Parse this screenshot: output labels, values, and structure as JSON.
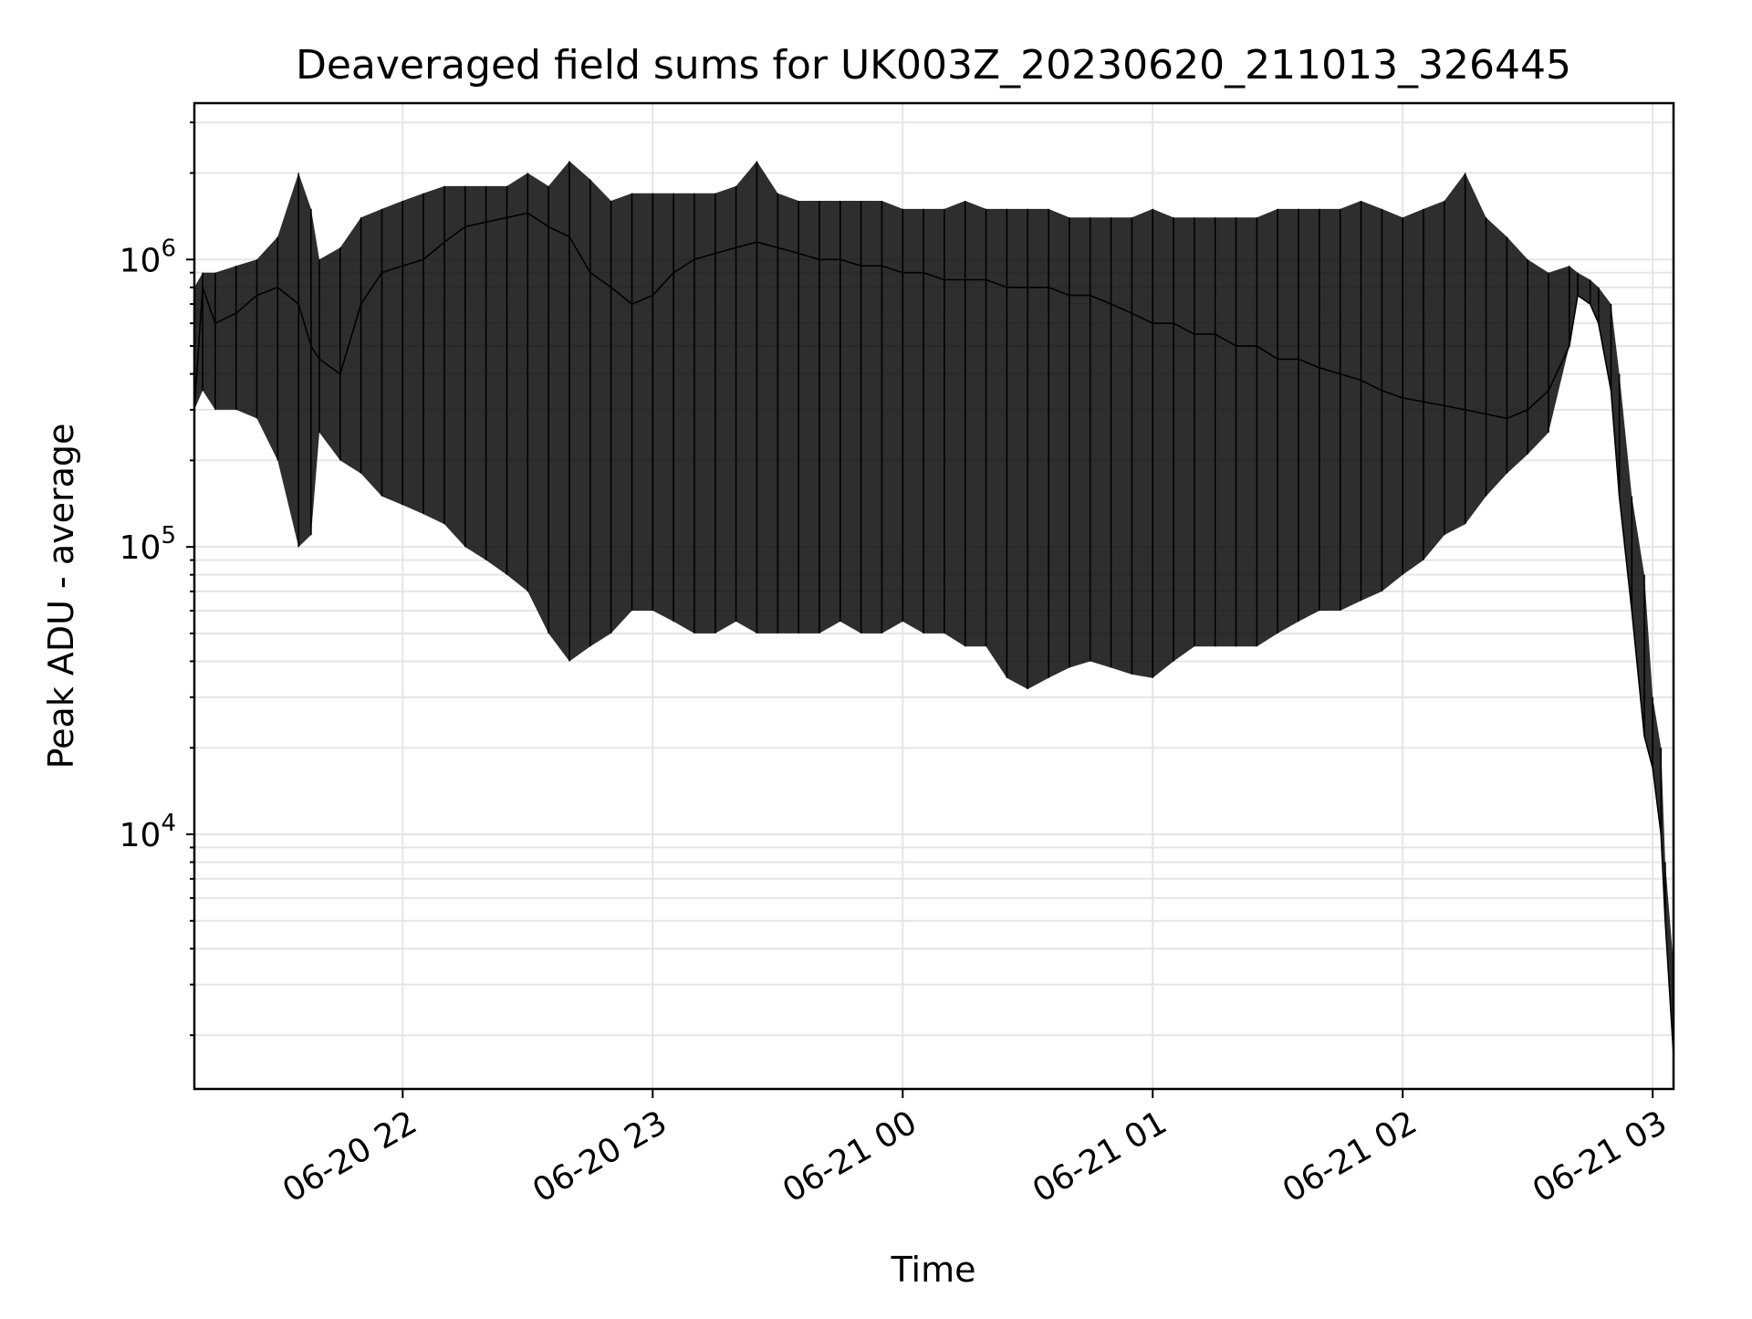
{
  "chart_data": {
    "type": "line",
    "title": "Deaveraged field sums for UK003Z_20230620_211013_326445",
    "xlabel": "Time",
    "ylabel": "Peak ADU - average",
    "yscale": "log",
    "grid": true,
    "line_color": "#000000",
    "grid_color": "#e5e5e5",
    "xlim": [
      "2023-06-20 21:10",
      "2023-06-21 03:05"
    ],
    "ylim": [
      1300,
      3500000
    ],
    "x_ticks": [
      {
        "label": "06-20 22",
        "time": "2023-06-20 22:00"
      },
      {
        "label": "06-20 23",
        "time": "2023-06-20 23:00"
      },
      {
        "label": "06-21 00",
        "time": "2023-06-21 00:00"
      },
      {
        "label": "06-21 01",
        "time": "2023-06-21 01:00"
      },
      {
        "label": "06-21 02",
        "time": "2023-06-21 02:00"
      },
      {
        "label": "06-21 03",
        "time": "2023-06-21 03:00"
      }
    ],
    "y_ticks": [
      {
        "base": "10",
        "exp": "4",
        "value": 10000
      },
      {
        "base": "10",
        "exp": "5",
        "value": 100000
      },
      {
        "base": "10",
        "exp": "6",
        "value": 1000000
      }
    ],
    "series": [
      {
        "x": [
          "2023-06-20 21:10",
          "2023-06-20 21:12",
          "2023-06-20 21:15",
          "2023-06-20 21:20",
          "2023-06-20 21:25",
          "2023-06-20 21:30",
          "2023-06-20 21:35",
          "2023-06-20 21:38",
          "2023-06-20 21:40",
          "2023-06-20 21:45",
          "2023-06-20 21:50",
          "2023-06-20 21:55",
          "2023-06-20 22:00",
          "2023-06-20 22:05",
          "2023-06-20 22:10",
          "2023-06-20 22:15",
          "2023-06-20 22:20",
          "2023-06-20 22:25",
          "2023-06-20 22:30",
          "2023-06-20 22:35",
          "2023-06-20 22:40",
          "2023-06-20 22:45",
          "2023-06-20 22:50",
          "2023-06-20 22:55",
          "2023-06-20 23:00",
          "2023-06-20 23:05",
          "2023-06-20 23:10",
          "2023-06-20 23:15",
          "2023-06-20 23:20",
          "2023-06-20 23:25",
          "2023-06-20 23:30",
          "2023-06-20 23:35",
          "2023-06-20 23:40",
          "2023-06-20 23:45",
          "2023-06-20 23:50",
          "2023-06-20 23:55",
          "2023-06-21 00:00",
          "2023-06-21 00:05",
          "2023-06-21 00:10",
          "2023-06-21 00:15",
          "2023-06-21 00:20",
          "2023-06-21 00:25",
          "2023-06-21 00:30",
          "2023-06-21 00:35",
          "2023-06-21 00:40",
          "2023-06-21 00:45",
          "2023-06-21 00:50",
          "2023-06-21 00:55",
          "2023-06-21 01:00",
          "2023-06-21 01:05",
          "2023-06-21 01:10",
          "2023-06-21 01:15",
          "2023-06-21 01:20",
          "2023-06-21 01:25",
          "2023-06-21 01:30",
          "2023-06-21 01:35",
          "2023-06-21 01:40",
          "2023-06-21 01:45",
          "2023-06-21 01:50",
          "2023-06-21 01:55",
          "2023-06-21 02:00",
          "2023-06-21 02:05",
          "2023-06-21 02:10",
          "2023-06-21 02:15",
          "2023-06-21 02:20",
          "2023-06-21 02:25",
          "2023-06-21 02:30",
          "2023-06-21 02:35",
          "2023-06-21 02:40",
          "2023-06-21 02:42",
          "2023-06-21 02:45",
          "2023-06-21 02:47",
          "2023-06-21 02:50",
          "2023-06-21 02:52",
          "2023-06-21 02:55",
          "2023-06-21 02:58",
          "2023-06-21 03:00",
          "2023-06-21 03:02",
          "2023-06-21 03:03",
          "2023-06-21 03:05"
        ],
        "y": [
          300000,
          800000,
          600000,
          650000,
          750000,
          800000,
          700000,
          500000,
          450000,
          400000,
          700000,
          900000,
          950000,
          1000000,
          1150000,
          1300000,
          1350000,
          1400000,
          1450000,
          1300000,
          1200000,
          900000,
          800000,
          700000,
          750000,
          900000,
          1000000,
          1050000,
          1100000,
          1150000,
          1100000,
          1050000,
          1000000,
          1000000,
          950000,
          950000,
          900000,
          900000,
          850000,
          850000,
          850000,
          800000,
          800000,
          800000,
          750000,
          750000,
          700000,
          650000,
          600000,
          600000,
          550000,
          550000,
          500000,
          500000,
          450000,
          450000,
          420000,
          400000,
          380000,
          350000,
          330000,
          320000,
          310000,
          300000,
          290000,
          280000,
          300000,
          350000,
          500000,
          750000,
          700000,
          600000,
          350000,
          150000,
          60000,
          22000,
          17000,
          10000,
          5000,
          1700
        ],
        "y_low": [
          300000,
          350000,
          300000,
          300000,
          280000,
          200000,
          100000,
          110000,
          250000,
          200000,
          180000,
          150000,
          140000,
          130000,
          120000,
          100000,
          90000,
          80000,
          70000,
          50000,
          40000,
          45000,
          50000,
          60000,
          60000,
          55000,
          50000,
          50000,
          55000,
          50000,
          50000,
          50000,
          50000,
          55000,
          50000,
          50000,
          55000,
          50000,
          50000,
          45000,
          45000,
          35000,
          32000,
          35000,
          38000,
          40000,
          38000,
          36000,
          35000,
          40000,
          45000,
          45000,
          45000,
          45000,
          50000,
          55000,
          60000,
          60000,
          65000,
          70000,
          80000,
          90000,
          110000,
          120000,
          150000,
          180000,
          210000,
          250000,
          500000,
          750000,
          700000,
          600000,
          350000,
          150000,
          60000,
          22000,
          17000,
          10000,
          5000,
          1700
        ],
        "y_high": [
          800000,
          900000,
          900000,
          950000,
          1000000,
          1200000,
          2000000,
          1500000,
          1000000,
          1100000,
          1400000,
          1500000,
          1600000,
          1700000,
          1800000,
          1800000,
          1800000,
          1800000,
          2000000,
          1800000,
          2200000,
          1900000,
          1600000,
          1700000,
          1700000,
          1700000,
          1700000,
          1700000,
          1800000,
          2200000,
          1700000,
          1600000,
          1600000,
          1600000,
          1600000,
          1600000,
          1500000,
          1500000,
          1500000,
          1600000,
          1500000,
          1500000,
          1500000,
          1500000,
          1400000,
          1400000,
          1400000,
          1400000,
          1500000,
          1400000,
          1400000,
          1400000,
          1400000,
          1400000,
          1500000,
          1500000,
          1500000,
          1500000,
          1600000,
          1500000,
          1400000,
          1500000,
          1600000,
          2000000,
          1400000,
          1200000,
          1000000,
          900000,
          950000,
          900000,
          850000,
          800000,
          700000,
          400000,
          150000,
          80000,
          30000,
          20000,
          8000,
          3500
        ]
      }
    ]
  }
}
